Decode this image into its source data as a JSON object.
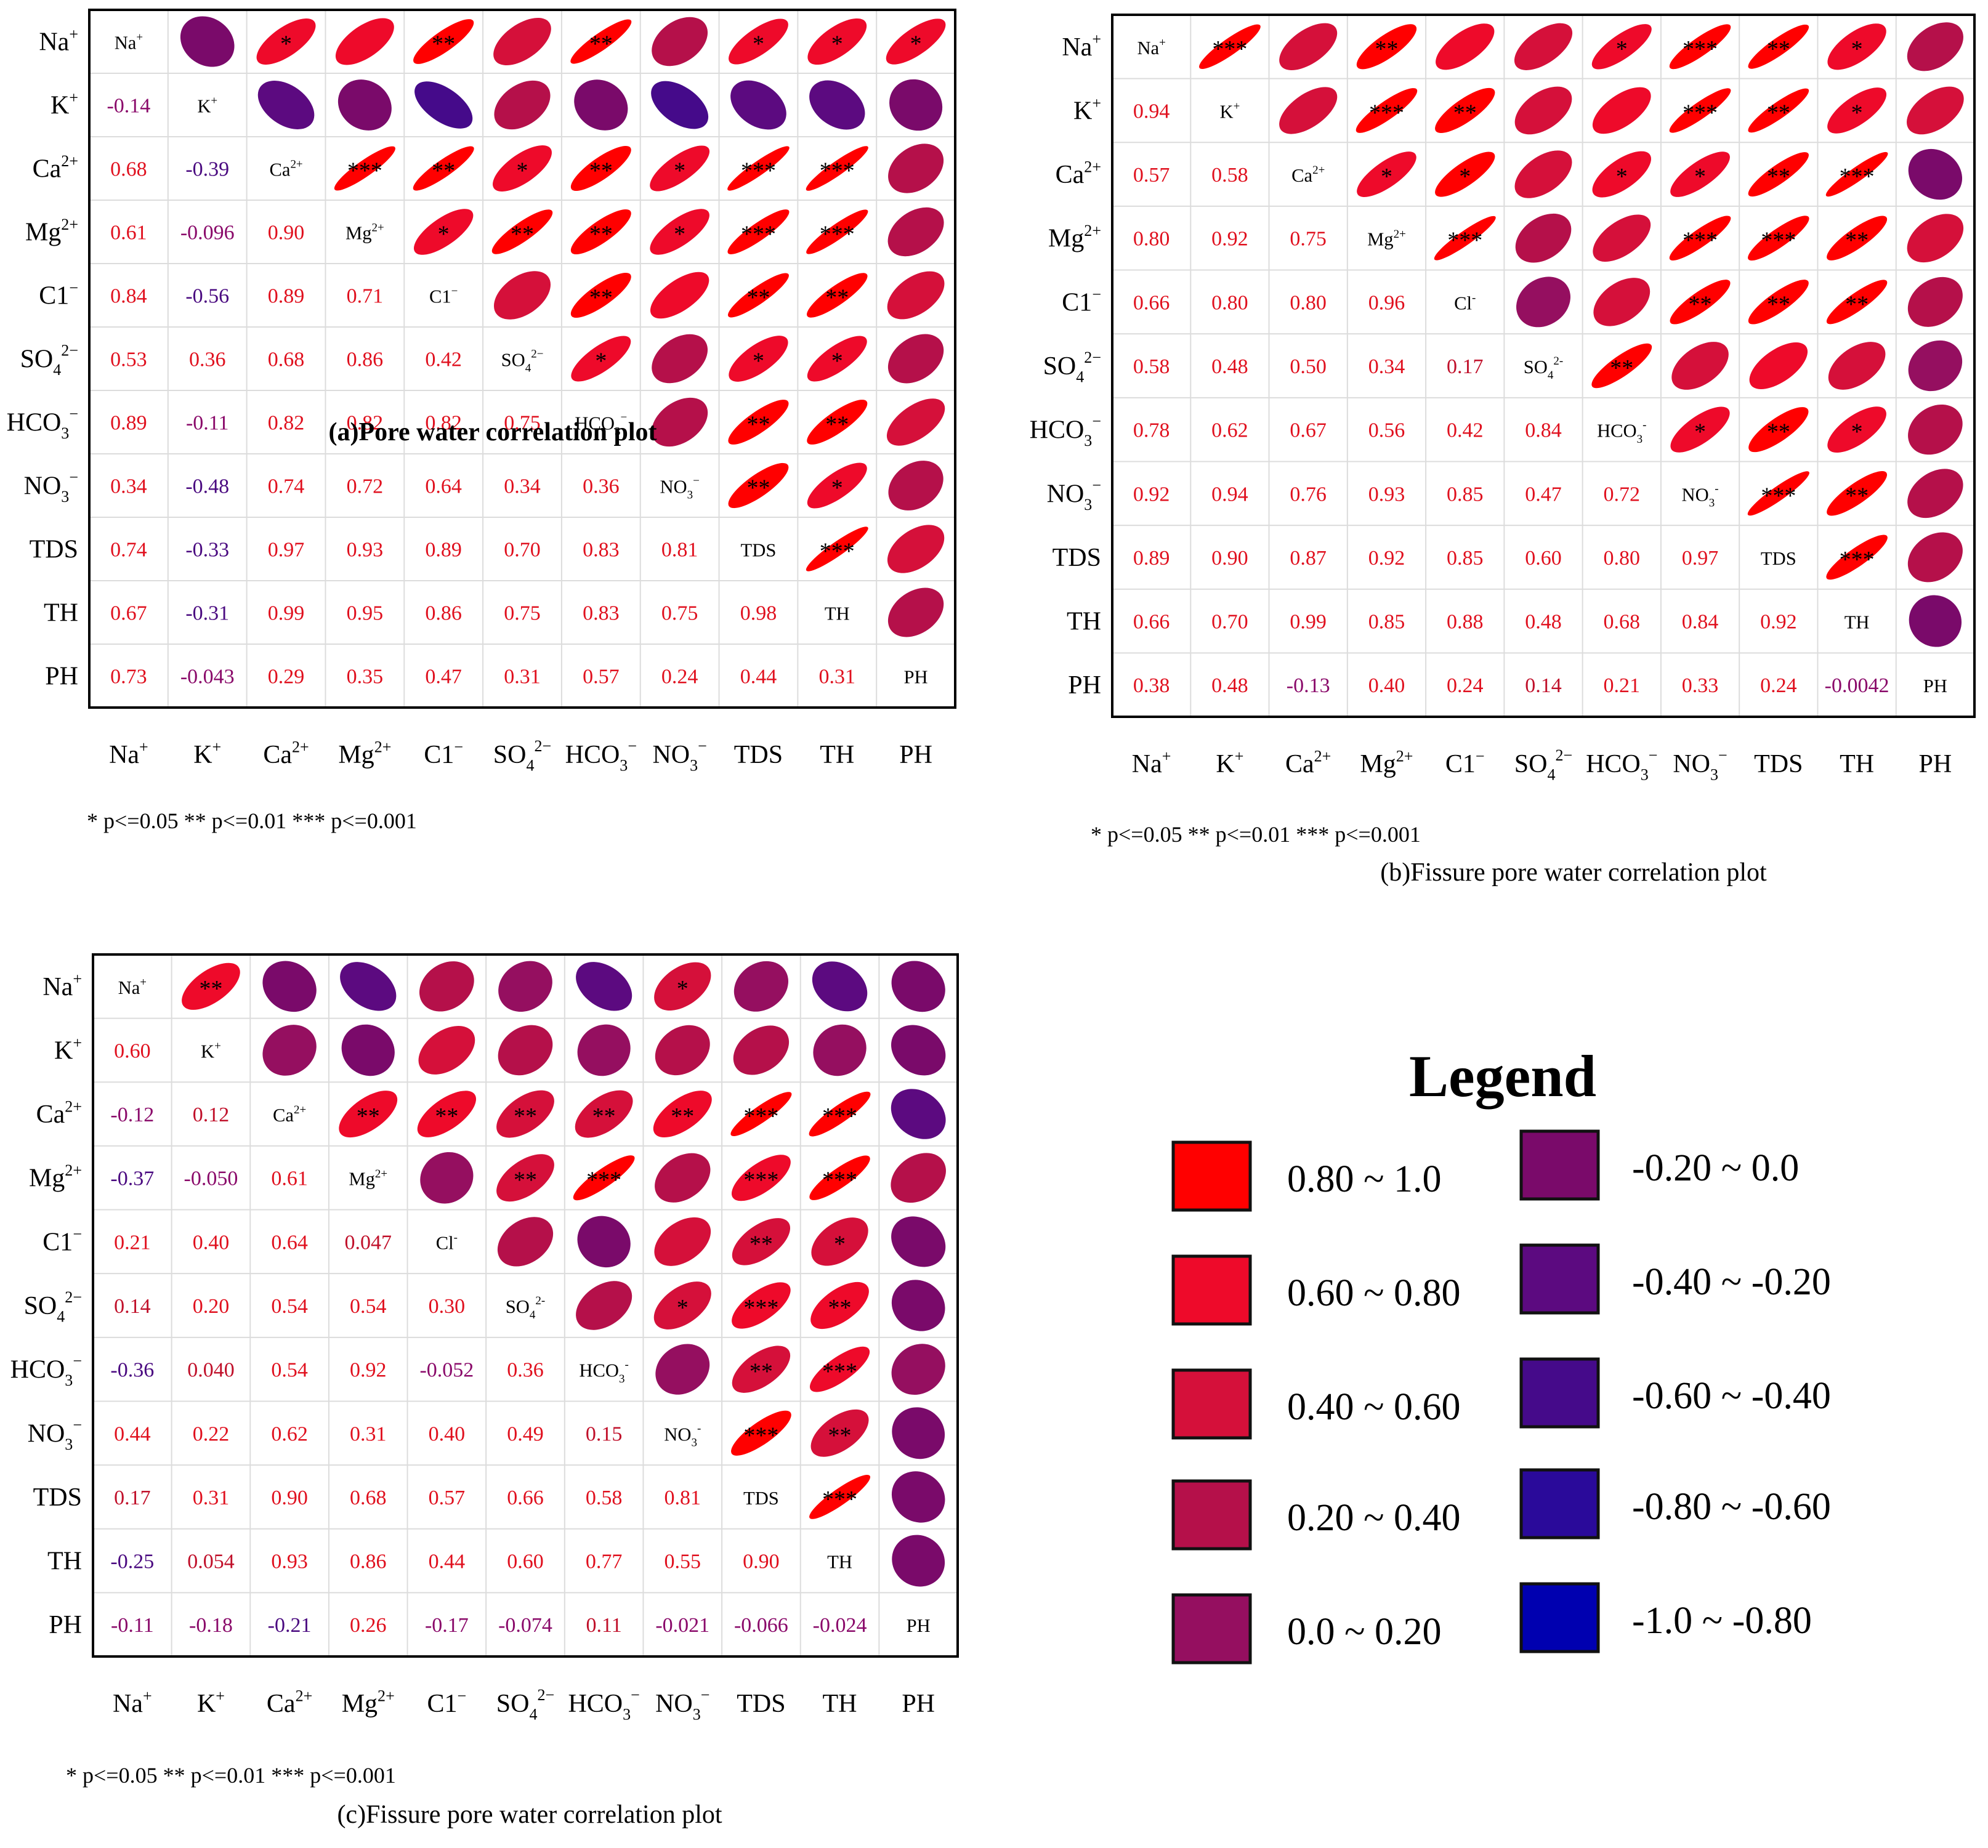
{
  "variables": [
    {
      "base": "Na",
      "sup": "+",
      "sub": ""
    },
    {
      "base": "K",
      "sup": "+",
      "sub": ""
    },
    {
      "base": "Ca",
      "sup": "2+",
      "sub": ""
    },
    {
      "base": "Mg",
      "sup": "2+",
      "sub": ""
    },
    {
      "base": "C1",
      "sup": "−",
      "sub": ""
    },
    {
      "base": "SO",
      "sub": "4",
      "sup": "2−"
    },
    {
      "base": "HCO",
      "sub": "3",
      "sup": "−"
    },
    {
      "base": "NO",
      "sub": "3",
      "sup": "−"
    },
    {
      "base": "TDS",
      "sup": "",
      "sub": ""
    },
    {
      "base": "TH",
      "sup": "",
      "sub": ""
    },
    {
      "base": "PH",
      "sup": "",
      "sub": ""
    }
  ],
  "diag_labels": {
    "a": [
      {
        "base": "Na",
        "sup": "+",
        "sub": ""
      },
      {
        "base": "K",
        "sup": "+",
        "sub": ""
      },
      {
        "base": "Ca",
        "sup": "2+",
        "sub": ""
      },
      {
        "base": "Mg",
        "sup": "2+",
        "sub": ""
      },
      {
        "base": "C1",
        "sup": "−",
        "sub": ""
      },
      {
        "base": "SO",
        "sub": "4",
        "sup": "2−"
      },
      {
        "base": "HCO",
        "sub": "3",
        "sup": "−"
      },
      {
        "base": "NO",
        "sub": "3",
        "sup": "−"
      },
      {
        "base": "TDS",
        "sup": "",
        "sub": ""
      },
      {
        "base": "TH",
        "sup": "",
        "sub": ""
      },
      {
        "base": "PH",
        "sup": "",
        "sub": ""
      }
    ],
    "bc": [
      {
        "base": "Na",
        "sup": "+",
        "sub": ""
      },
      {
        "base": "K",
        "sup": "+",
        "sub": ""
      },
      {
        "base": "Ca",
        "sup": "2+",
        "sub": ""
      },
      {
        "base": "Mg",
        "sup": "2+",
        "sub": ""
      },
      {
        "base": "Cl",
        "sup": "-",
        "sub": ""
      },
      {
        "base": "SO",
        "sub": "4",
        "sup": "2-"
      },
      {
        "base": "HCO",
        "sub": "3",
        "sup": "-"
      },
      {
        "base": "NO",
        "sub": "3",
        "sup": "-"
      },
      {
        "base": "TDS",
        "sup": "",
        "sub": ""
      },
      {
        "base": "TH",
        "sup": "",
        "sub": ""
      },
      {
        "base": "PH",
        "sup": "",
        "sub": ""
      }
    ]
  },
  "significance_note": "* p<=0.05  ** p<=0.01  *** p<=0.001",
  "chart_data": [
    {
      "id": "a",
      "type": "heatmap",
      "title": "(a)Pore water correlation plot",
      "title_bold": true,
      "lower_labels": [
        [
          "-0.14"
        ],
        [
          "0.68",
          "-0.39"
        ],
        [
          "0.61",
          "-0.096",
          "0.90"
        ],
        [
          "0.84",
          "-0.56",
          "0.89",
          "0.71"
        ],
        [
          "0.53",
          "0.36",
          "0.68",
          "0.86",
          "0.42"
        ],
        [
          "0.89",
          "-0.11",
          "0.82",
          "0.82",
          "0.82",
          "0.75"
        ],
        [
          "0.34",
          "-0.48",
          "0.74",
          "0.72",
          "0.64",
          "0.34",
          "0.36"
        ],
        [
          "0.74",
          "-0.33",
          "0.97",
          "0.93",
          "0.89",
          "0.70",
          "0.83",
          "0.81"
        ],
        [
          "0.67",
          "-0.31",
          "0.99",
          "0.95",
          "0.86",
          "0.75",
          "0.83",
          "0.75",
          "0.98"
        ],
        [
          "0.73",
          "-0.043",
          "0.29",
          "0.35",
          "0.47",
          "0.31",
          "0.57",
          "0.24",
          "0.44",
          "0.31"
        ]
      ],
      "stars": [
        [],
        [
          "",
          "",
          "",
          ""
        ],
        [
          "*",
          "",
          "",
          "",
          "",
          "",
          "",
          "",
          "",
          ""
        ],
        [
          "",
          "",
          "",
          "",
          "",
          "",
          "",
          "",
          "",
          ""
        ]
      ],
      "star_map": {
        "0-2": "*",
        "0-4": "**",
        "0-6": "**",
        "0-8": "*",
        "0-9": "*",
        "0-10": "*",
        "2-3": "***",
        "2-4": "**",
        "2-5": "*",
        "2-6": "**",
        "2-7": "*",
        "2-8": "***",
        "2-9": "***",
        "3-4": "*",
        "3-5": "**",
        "3-6": "**",
        "3-7": "*",
        "3-8": "***",
        "3-9": "***",
        "4-6": "**",
        "4-8": "**",
        "4-9": "**",
        "5-6": "*",
        "5-8": "*",
        "5-9": "*",
        "6-8": "**",
        "6-9": "**",
        "7-8": "**",
        "7-9": "*",
        "8-9": "***"
      }
    },
    {
      "id": "b",
      "type": "heatmap",
      "title": "(b)Fissure pore water correlation plot",
      "title_bold": false,
      "lower_labels": [
        [
          "0.94"
        ],
        [
          "0.57",
          "0.58"
        ],
        [
          "0.80",
          "0.92",
          "0.75"
        ],
        [
          "0.66",
          "0.80",
          "0.80",
          "0.96"
        ],
        [
          "0.58",
          "0.48",
          "0.50",
          "0.34",
          "0.17"
        ],
        [
          "0.78",
          "0.62",
          "0.67",
          "0.56",
          "0.42",
          "0.84"
        ],
        [
          "0.92",
          "0.94",
          "0.76",
          "0.93",
          "0.85",
          "0.47",
          "0.72"
        ],
        [
          "0.89",
          "0.90",
          "0.87",
          "0.92",
          "0.85",
          "0.60",
          "0.80",
          "0.97"
        ],
        [
          "0.66",
          "0.70",
          "0.99",
          "0.85",
          "0.88",
          "0.48",
          "0.68",
          "0.84",
          "0.92"
        ],
        [
          "0.38",
          "0.48",
          "-0.13",
          "0.40",
          "0.24",
          "0.14",
          "0.21",
          "0.33",
          "0.24",
          "-0.0042"
        ]
      ],
      "star_map": {
        "0-1": "***",
        "0-3": "**",
        "0-6": "*",
        "0-7": "***",
        "0-8": "**",
        "0-9": "*",
        "1-3": "***",
        "1-4": "**",
        "1-7": "***",
        "1-8": "**",
        "1-9": "*",
        "2-3": "*",
        "2-4": "*",
        "2-6": "*",
        "2-7": "*",
        "2-8": "**",
        "2-9": "***",
        "3-4": "***",
        "3-7": "***",
        "3-8": "***",
        "3-9": "**",
        "4-7": "**",
        "4-8": "**",
        "4-9": "**",
        "5-6": "**",
        "6-7": "*",
        "6-8": "**",
        "6-9": "*",
        "7-8": "***",
        "7-9": "**",
        "8-9": "***"
      }
    },
    {
      "id": "c",
      "type": "heatmap",
      "title": "(c)Fissure pore water correlation plot",
      "title_bold": false,
      "lower_labels": [
        [
          "0.60"
        ],
        [
          "-0.12",
          "0.12"
        ],
        [
          "-0.37",
          "-0.050",
          "0.61"
        ],
        [
          "0.21",
          "0.40",
          "0.64",
          "0.047"
        ],
        [
          "0.14",
          "0.20",
          "0.54",
          "0.54",
          "0.30"
        ],
        [
          "-0.36",
          "0.040",
          "0.54",
          "0.92",
          "-0.052",
          "0.36"
        ],
        [
          "0.44",
          "0.22",
          "0.62",
          "0.31",
          "0.40",
          "0.49",
          "0.15"
        ],
        [
          "0.17",
          "0.31",
          "0.90",
          "0.68",
          "0.57",
          "0.66",
          "0.58",
          "0.81"
        ],
        [
          "-0.25",
          "0.054",
          "0.93",
          "0.86",
          "0.44",
          "0.60",
          "0.77",
          "0.55",
          "0.90"
        ],
        [
          "-0.11",
          "-0.18",
          "-0.21",
          "0.26",
          "-0.17",
          "-0.074",
          "0.11",
          "-0.021",
          "-0.066",
          "-0.024"
        ]
      ],
      "star_map": {
        "0-1": "**",
        "0-7": "*",
        "2-3": "**",
        "2-4": "**",
        "2-5": "**",
        "2-6": "**",
        "2-7": "**",
        "2-8": "***",
        "2-9": "***",
        "3-5": "**",
        "3-6": "***",
        "3-8": "***",
        "3-9": "***",
        "4-8": "**",
        "4-9": "*",
        "5-7": "*",
        "5-8": "***",
        "5-9": "**",
        "6-8": "**",
        "6-9": "***",
        "7-8": "***",
        "7-9": "**",
        "8-9": "***"
      }
    }
  ],
  "legend": {
    "title": "Legend",
    "items": [
      {
        "label": "0.80  ~ 1.0",
        "color": "#ff0000"
      },
      {
        "label": "0.60  ~ 0.80",
        "color": "#ee0a2a"
      },
      {
        "label": "0.40  ~ 0.60",
        "color": "#d5103a"
      },
      {
        "label": "0.20  ~ 0.40",
        "color": "#b5104a"
      },
      {
        "label": "0.0    ~ 0.20",
        "color": "#950f60"
      },
      {
        "label": "-0.20 ~ 0.0",
        "color": "#7a0a6a"
      },
      {
        "label": "-0.40 ~ -0.20",
        "color": "#5c0a80"
      },
      {
        "label": "-0.60 ~ -0.40",
        "color": "#450a8a"
      },
      {
        "label": "-0.80 ~ -0.60",
        "color": "#2a0a9a"
      },
      {
        "label": "-1.0   ~ -0.80",
        "color": "#0000b0"
      }
    ]
  }
}
